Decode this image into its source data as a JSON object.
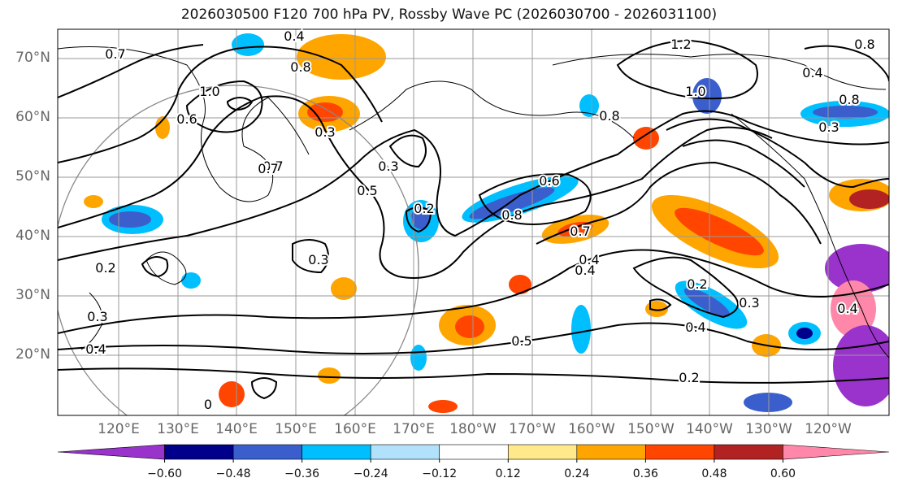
{
  "title": "2026030500 F120 700 hPa PV, Rossby Wave PC (2026030700 - 2026031100)",
  "lat_ticks": [
    "70°N",
    "60°N",
    "50°N",
    "40°N",
    "30°N",
    "20°N"
  ],
  "lon_ticks": [
    "120°E",
    "130°E",
    "140°E",
    "150°E",
    "160°E",
    "170°E",
    "180°W",
    "170°W",
    "160°W",
    "150°W",
    "140°W",
    "130°W",
    "120°W"
  ],
  "contour_labels": [
    "0.4",
    "0.8",
    "0.7",
    "1.0",
    "0.6",
    "0.7",
    "0.5",
    "0.3",
    "0.2",
    "0.8",
    "0.6",
    "0.7",
    "0.4",
    "0.3",
    "0.2",
    "0.3",
    "0.4",
    "0.5",
    "0.2",
    "0.4",
    "1.2",
    "1.0",
    "0.8",
    "0.3",
    "0.7",
    "0.4",
    "0.2",
    "0.3",
    "0.4",
    "0.3",
    "0.8",
    "0.8",
    "0.4",
    "0"
  ],
  "colorbar": {
    "tick_labels": [
      "−0.60",
      "−0.48",
      "−0.36",
      "−0.24",
      "−0.12",
      "0.12",
      "0.24",
      "0.36",
      "0.48",
      "0.60"
    ],
    "bins": [
      {
        "range": [
          -0.72,
          -0.6
        ],
        "color": "#9933cc"
      },
      {
        "range": [
          -0.6,
          -0.48
        ],
        "color": "#00008b"
      },
      {
        "range": [
          -0.48,
          -0.36
        ],
        "color": "#3a5fcd"
      },
      {
        "range": [
          -0.36,
          -0.24
        ],
        "color": "#00bfff"
      },
      {
        "range": [
          -0.24,
          -0.12
        ],
        "color": "#b2e2fb"
      },
      {
        "range": [
          -0.12,
          0.12
        ],
        "color": "#ffffff"
      },
      {
        "range": [
          0.12,
          0.24
        ],
        "color": "#ffe98a"
      },
      {
        "range": [
          0.24,
          0.36
        ],
        "color": "#ffa500"
      },
      {
        "range": [
          0.36,
          0.48
        ],
        "color": "#ff4500"
      },
      {
        "range": [
          0.48,
          0.6
        ],
        "color": "#b22222"
      },
      {
        "range": [
          0.6,
          0.72
        ],
        "color": "#ff88aa"
      }
    ]
  }
}
